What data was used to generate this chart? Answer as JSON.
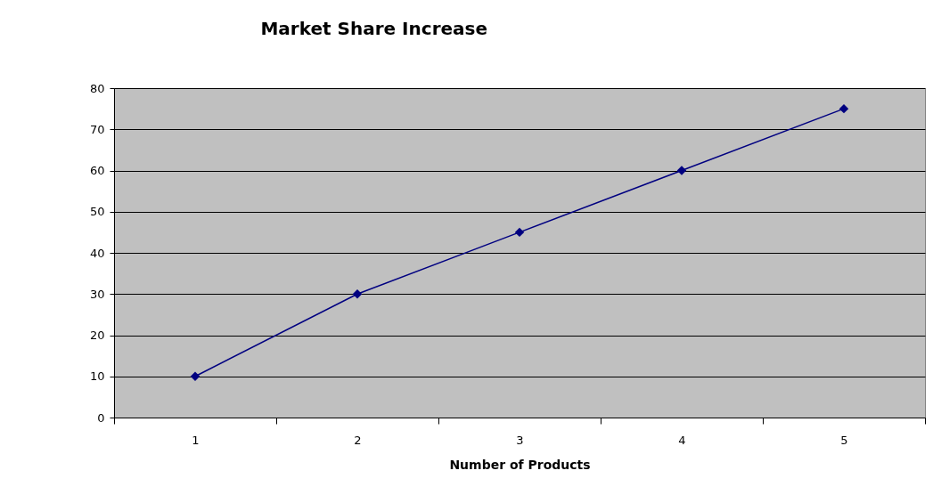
{
  "chart_data": {
    "type": "line",
    "title": "Market Share Increase",
    "xlabel": "Number of Products",
    "categories": [
      "1",
      "2",
      "3",
      "4",
      "5"
    ],
    "series": [
      {
        "color": "#000080",
        "values": [
          10,
          30,
          45,
          60,
          75
        ]
      }
    ],
    "ylim": [
      0,
      80
    ],
    "yticks": [
      0,
      10,
      20,
      30,
      40,
      50,
      60,
      70,
      80
    ],
    "grid": "y",
    "marker": "diamond",
    "line_style": "solid"
  }
}
